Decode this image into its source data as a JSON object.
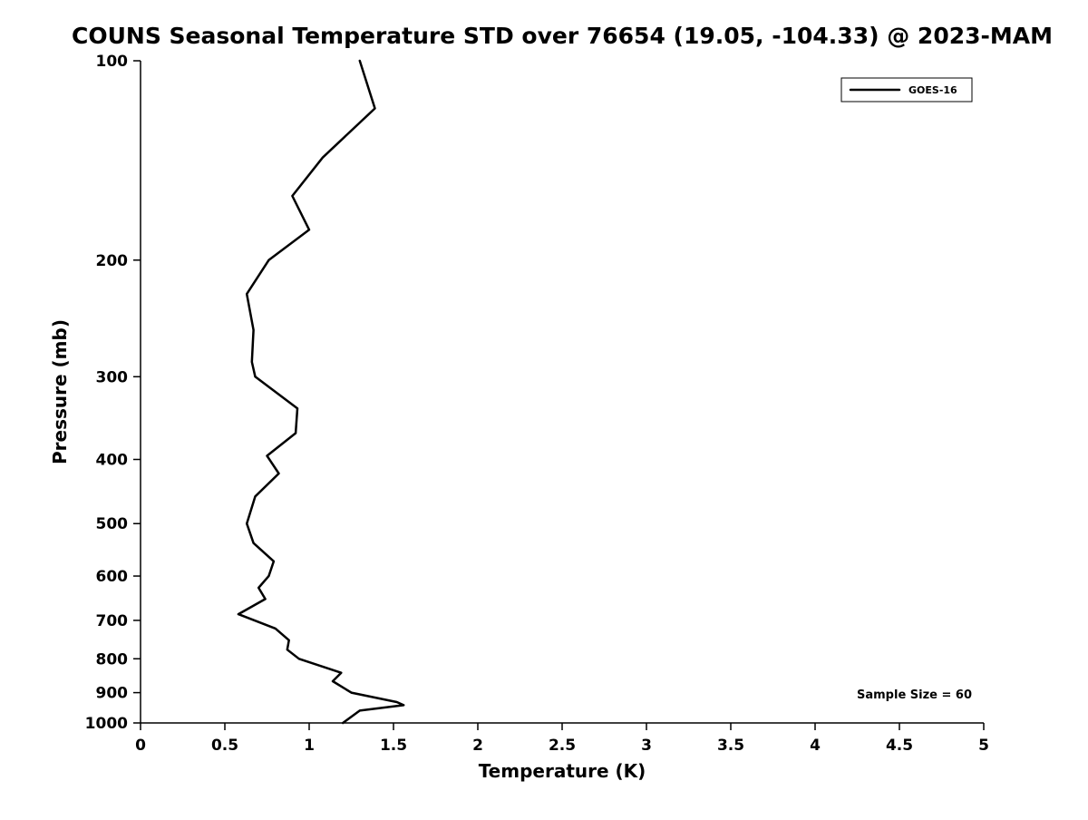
{
  "chart_data": {
    "type": "line",
    "title": "COUNS Seasonal Temperature STD over 76654 (19.05, -104.33) @ 2023-MAM",
    "xlabel": "Temperature (K)",
    "ylabel": "Pressure (mb)",
    "xlim": [
      0,
      5
    ],
    "ylim": [
      100,
      1000
    ],
    "yscale": "log",
    "y_inverted": true,
    "grid": false,
    "xticks": [
      0,
      0.5,
      1,
      1.5,
      2,
      2.5,
      3,
      3.5,
      4,
      4.5,
      5
    ],
    "xtick_labels": [
      "0",
      "0.5",
      "1",
      "1.5",
      "2",
      "2.5",
      "3",
      "3.5",
      "4",
      "4.5",
      "5"
    ],
    "yticks": [
      100,
      200,
      300,
      400,
      500,
      600,
      700,
      800,
      900,
      1000
    ],
    "ytick_labels": [
      "100",
      "200",
      "300",
      "400",
      "500",
      "600",
      "700",
      "800",
      "900",
      "1000"
    ],
    "legend": {
      "position": "top-right",
      "entries": [
        {
          "name": "GOES-16",
          "color": "#000000",
          "line_style": "solid"
        }
      ]
    },
    "annotation": "Sample Size = 60",
    "series": [
      {
        "name": "GOES-16",
        "color": "#000000",
        "pressure": [
          100,
          118,
          140,
          160,
          180,
          200,
          225,
          255,
          285,
          300,
          335,
          365,
          395,
          420,
          455,
          500,
          535,
          570,
          600,
          625,
          650,
          685,
          720,
          750,
          775,
          800,
          840,
          865,
          900,
          930,
          940,
          958,
          1000
        ],
        "values": [
          1.3,
          1.39,
          1.08,
          0.9,
          1.0,
          0.76,
          0.63,
          0.67,
          0.66,
          0.68,
          0.93,
          0.92,
          0.75,
          0.82,
          0.68,
          0.63,
          0.67,
          0.79,
          0.76,
          0.7,
          0.74,
          0.58,
          0.8,
          0.88,
          0.87,
          0.94,
          1.19,
          1.14,
          1.25,
          1.52,
          1.56,
          1.3,
          1.2
        ]
      }
    ]
  }
}
